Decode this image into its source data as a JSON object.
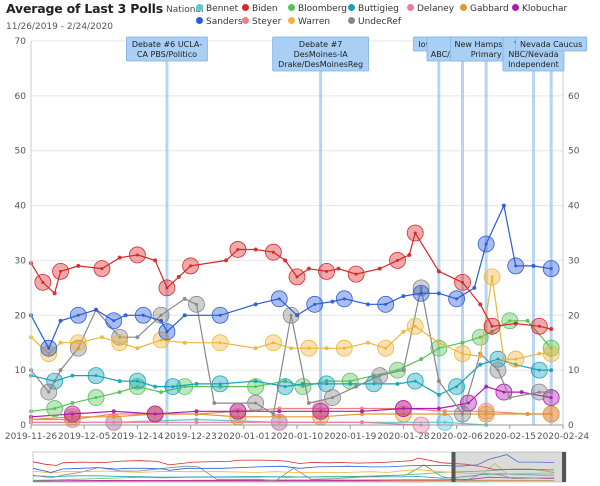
{
  "header": {
    "title": "Average of Last 3 Polls",
    "subtitle": "11/26/2019 - 2/24/2020",
    "scope": "National"
  },
  "legend": [
    {
      "name": "Bennet",
      "color": "#5bc8d6"
    },
    {
      "name": "Biden",
      "color": "#d62728"
    },
    {
      "name": "Bloomberg",
      "color": "#57c25a"
    },
    {
      "name": "Buttigieg",
      "color": "#17a2b8"
    },
    {
      "name": "Delaney",
      "color": "#ef7aa0"
    },
    {
      "name": "Gabbard",
      "color": "#e0982e"
    },
    {
      "name": "Klobuchar",
      "color": "#b01ab0"
    },
    {
      "name": "Sanders",
      "color": "#2a5bd7"
    },
    {
      "name": "Steyer",
      "color": "#f08080"
    },
    {
      "name": "Warren",
      "color": "#f0b43c"
    },
    {
      "name": "UndecRef",
      "color": "#888888"
    }
  ],
  "events": [
    {
      "date": "2019-12-19",
      "label_lines": [
        "Debate #6 UCLA-",
        "CA PBS/Politico"
      ]
    },
    {
      "date": "2020-01-14",
      "label_lines": [
        "Debate #7",
        "DesMoines-IA",
        "Drake/DesMoinesReg"
      ]
    },
    {
      "date": "2020-02-03",
      "label_lines": [
        "Iowa Cauc"
      ]
    },
    {
      "date": "2020-02-07",
      "label_lines": [
        "Mar",
        "ABC/AppleNews"
      ]
    },
    {
      "date": "2020-02-11",
      "label_lines": [
        "New Hampshire",
        "Primary"
      ]
    },
    {
      "date": "2020-02-19",
      "label_lines": [
        "Vegas-NV",
        "NBC/Nevada",
        "Independent"
      ]
    },
    {
      "date": "2020-02-22",
      "label_lines": [
        "Nevada Caucus"
      ]
    }
  ],
  "chart_data": {
    "type": "line",
    "title": "Average of Last 3 Polls",
    "subtitle": "11/26/2019 - 2/24/2020",
    "xlabel": "",
    "ylabel": "",
    "x_range": [
      "2019-11-26",
      "2020-02-24"
    ],
    "ylim": [
      0,
      70
    ],
    "y_ticks": [
      0,
      10,
      20,
      30,
      40,
      50,
      60,
      70
    ],
    "x_ticks": [
      "2019-11-26",
      "2019-12-05",
      "2019-12-14",
      "2019-12-23",
      "2020-01-01",
      "2020-01-10",
      "2020-01-19",
      "2020-01-28",
      "2020-02-06",
      "2020-02-15",
      "2020-02-24"
    ],
    "grid": true,
    "legend_position": "top",
    "series": [
      {
        "name": "Biden",
        "color": "#d62728",
        "points": [
          [
            "2019-11-26",
            29.5
          ],
          [
            "2019-11-28",
            26
          ],
          [
            "2019-11-30",
            24
          ],
          [
            "2019-12-01",
            28
          ],
          [
            "2019-12-04",
            29
          ],
          [
            "2019-12-08",
            28.5
          ],
          [
            "2019-12-11",
            30.5
          ],
          [
            "2019-12-14",
            31
          ],
          [
            "2019-12-17",
            30
          ],
          [
            "2019-12-19",
            25
          ],
          [
            "2019-12-21",
            27
          ],
          [
            "2019-12-23",
            29
          ],
          [
            "2019-12-29",
            30
          ],
          [
            "2019-12-31",
            32
          ],
          [
            "2020-01-03",
            32
          ],
          [
            "2020-01-06",
            31.5
          ],
          [
            "2020-01-08",
            30
          ],
          [
            "2020-01-10",
            27
          ],
          [
            "2020-01-12",
            28.5
          ],
          [
            "2020-01-15",
            28
          ],
          [
            "2020-01-17",
            28.5
          ],
          [
            "2020-01-20",
            27.5
          ],
          [
            "2020-01-24",
            28.5
          ],
          [
            "2020-01-27",
            30
          ],
          [
            "2020-01-29",
            31
          ],
          [
            "2020-01-30",
            35
          ],
          [
            "2020-02-03",
            28
          ],
          [
            "2020-02-07",
            26
          ],
          [
            "2020-02-10",
            22
          ],
          [
            "2020-02-12",
            18
          ],
          [
            "2020-02-16",
            18.5
          ],
          [
            "2020-02-20",
            18
          ],
          [
            "2020-02-22",
            17.5
          ]
        ]
      },
      {
        "name": "Sanders",
        "color": "#2a5bd7",
        "points": [
          [
            "2019-11-26",
            20
          ],
          [
            "2019-11-29",
            14
          ],
          [
            "2019-12-01",
            19
          ],
          [
            "2019-12-04",
            20
          ],
          [
            "2019-12-07",
            21
          ],
          [
            "2019-12-10",
            19
          ],
          [
            "2019-12-12",
            20
          ],
          [
            "2019-12-15",
            20
          ],
          [
            "2019-12-18",
            19
          ],
          [
            "2019-12-19",
            17
          ],
          [
            "2019-12-22",
            20
          ],
          [
            "2019-12-28",
            20
          ],
          [
            "2020-01-03",
            22
          ],
          [
            "2020-01-07",
            23
          ],
          [
            "2020-01-10",
            20
          ],
          [
            "2020-01-13",
            22
          ],
          [
            "2020-01-16",
            22.5
          ],
          [
            "2020-01-18",
            23
          ],
          [
            "2020-01-22",
            22
          ],
          [
            "2020-01-25",
            22
          ],
          [
            "2020-01-28",
            23.5
          ],
          [
            "2020-01-31",
            24
          ],
          [
            "2020-02-03",
            24
          ],
          [
            "2020-02-06",
            23
          ],
          [
            "2020-02-09",
            25
          ],
          [
            "2020-02-11",
            33
          ],
          [
            "2020-02-14",
            40
          ],
          [
            "2020-02-16",
            29
          ],
          [
            "2020-02-19",
            29
          ],
          [
            "2020-02-22",
            28.5
          ]
        ]
      },
      {
        "name": "Warren",
        "color": "#f0b43c",
        "points": [
          [
            "2019-11-26",
            16
          ],
          [
            "2019-11-29",
            13
          ],
          [
            "2019-12-01",
            15
          ],
          [
            "2019-12-04",
            15
          ],
          [
            "2019-12-08",
            16
          ],
          [
            "2019-12-11",
            15
          ],
          [
            "2019-12-14",
            14
          ],
          [
            "2019-12-18",
            15.5
          ],
          [
            "2019-12-22",
            15
          ],
          [
            "2019-12-28",
            15
          ],
          [
            "2020-01-03",
            14
          ],
          [
            "2020-01-06",
            15
          ],
          [
            "2020-01-09",
            14
          ],
          [
            "2020-01-12",
            14
          ],
          [
            "2020-01-15",
            14
          ],
          [
            "2020-01-18",
            14
          ],
          [
            "2020-01-22",
            15
          ],
          [
            "2020-01-25",
            14
          ],
          [
            "2020-01-28",
            17
          ],
          [
            "2020-01-30",
            18
          ],
          [
            "2020-02-03",
            15
          ],
          [
            "2020-02-07",
            13
          ],
          [
            "2020-02-10",
            12.5
          ],
          [
            "2020-02-12",
            27
          ],
          [
            "2020-02-14",
            12
          ],
          [
            "2020-02-16",
            12
          ],
          [
            "2020-02-20",
            13
          ],
          [
            "2020-02-22",
            13
          ]
        ]
      },
      {
        "name": "UndecRef",
        "color": "#888888",
        "points": [
          [
            "2019-11-26",
            10
          ],
          [
            "2019-11-29",
            6
          ],
          [
            "2019-12-01",
            10
          ],
          [
            "2019-12-04",
            14
          ],
          [
            "2019-12-07",
            21
          ],
          [
            "2019-12-11",
            16
          ],
          [
            "2019-12-14",
            16
          ],
          [
            "2019-12-18",
            20
          ],
          [
            "2019-12-22",
            23
          ],
          [
            "2019-12-24",
            22
          ],
          [
            "2019-12-27",
            4
          ],
          [
            "2020-01-03",
            4
          ],
          [
            "2020-01-06",
            2
          ],
          [
            "2020-01-09",
            20
          ],
          [
            "2020-01-12",
            4
          ],
          [
            "2020-01-16",
            5
          ],
          [
            "2020-01-20",
            7
          ],
          [
            "2020-01-24",
            9
          ],
          [
            "2020-01-28",
            10
          ],
          [
            "2020-01-31",
            25
          ],
          [
            "2020-02-03",
            8
          ],
          [
            "2020-02-07",
            2
          ],
          [
            "2020-02-10",
            13
          ],
          [
            "2020-02-13",
            10
          ],
          [
            "2020-02-15",
            5
          ],
          [
            "2020-02-20",
            6
          ],
          [
            "2020-02-22",
            6
          ]
        ]
      },
      {
        "name": "Buttigieg",
        "color": "#17a2b8",
        "points": [
          [
            "2019-11-26",
            9
          ],
          [
            "2019-11-30",
            8
          ],
          [
            "2019-12-03",
            9
          ],
          [
            "2019-12-07",
            9
          ],
          [
            "2019-12-11",
            8
          ],
          [
            "2019-12-14",
            8
          ],
          [
            "2019-12-17",
            7
          ],
          [
            "2019-12-20",
            7
          ],
          [
            "2019-12-24",
            7.5
          ],
          [
            "2019-12-28",
            7.5
          ],
          [
            "2020-01-03",
            8
          ],
          [
            "2020-01-08",
            7
          ],
          [
            "2020-01-11",
            7.5
          ],
          [
            "2020-01-15",
            7.5
          ],
          [
            "2020-01-19",
            7.5
          ],
          [
            "2020-01-23",
            7.5
          ],
          [
            "2020-01-27",
            7.5
          ],
          [
            "2020-01-30",
            8
          ],
          [
            "2020-02-03",
            5.5
          ],
          [
            "2020-02-06",
            7
          ],
          [
            "2020-02-10",
            11
          ],
          [
            "2020-02-13",
            12
          ],
          [
            "2020-02-16",
            11
          ],
          [
            "2020-02-20",
            10
          ],
          [
            "2020-02-22",
            10
          ]
        ]
      },
      {
        "name": "Bloomberg",
        "color": "#57c25a",
        "points": [
          [
            "2019-11-26",
            2.5
          ],
          [
            "2019-11-30",
            3
          ],
          [
            "2019-12-03",
            4
          ],
          [
            "2019-12-07",
            5
          ],
          [
            "2019-12-11",
            6
          ],
          [
            "2019-12-14",
            7
          ],
          [
            "2019-12-18",
            6
          ],
          [
            "2019-12-22",
            7
          ],
          [
            "2019-12-28",
            7
          ],
          [
            "2020-01-03",
            7
          ],
          [
            "2020-01-08",
            8
          ],
          [
            "2020-01-11",
            7
          ],
          [
            "2020-01-15",
            8
          ],
          [
            "2020-01-19",
            8
          ],
          [
            "2020-01-23",
            9
          ],
          [
            "2020-01-27",
            10
          ],
          [
            "2020-01-31",
            12
          ],
          [
            "2020-02-03",
            14
          ],
          [
            "2020-02-07",
            15
          ],
          [
            "2020-02-10",
            16
          ],
          [
            "2020-02-12",
            17
          ],
          [
            "2020-02-15",
            19
          ],
          [
            "2020-02-18",
            19
          ],
          [
            "2020-02-22",
            14
          ]
        ]
      },
      {
        "name": "Klobuchar",
        "color": "#b01ab0",
        "points": [
          [
            "2019-11-26",
            1.5
          ],
          [
            "2019-12-03",
            2
          ],
          [
            "2019-12-10",
            2.5
          ],
          [
            "2019-12-17",
            2
          ],
          [
            "2019-12-24",
            2.5
          ],
          [
            "2019-12-31",
            2.5
          ],
          [
            "2020-01-07",
            2.5
          ],
          [
            "2020-01-14",
            2.5
          ],
          [
            "2020-01-21",
            2.5
          ],
          [
            "2020-01-28",
            3
          ],
          [
            "2020-02-03",
            3
          ],
          [
            "2020-02-08",
            4
          ],
          [
            "2020-02-11",
            7
          ],
          [
            "2020-02-14",
            6
          ],
          [
            "2020-02-17",
            6
          ],
          [
            "2020-02-22",
            5
          ]
        ]
      },
      {
        "name": "Gabbard",
        "color": "#e0982e",
        "points": [
          [
            "2019-11-26",
            1
          ],
          [
            "2019-12-03",
            1.5
          ],
          [
            "2019-12-10",
            1.5
          ],
          [
            "2019-12-17",
            2
          ],
          [
            "2019-12-24",
            2
          ],
          [
            "2019-12-31",
            1.5
          ],
          [
            "2020-01-07",
            1.5
          ],
          [
            "2020-01-14",
            1.5
          ],
          [
            "2020-01-21",
            2
          ],
          [
            "2020-01-28",
            2
          ],
          [
            "2020-02-04",
            2
          ],
          [
            "2020-02-11",
            2
          ],
          [
            "2020-02-18",
            2
          ],
          [
            "2020-02-22",
            2
          ]
        ]
      },
      {
        "name": "Steyer",
        "color": "#f08080",
        "points": [
          [
            "2019-11-26",
            1
          ],
          [
            "2019-12-03",
            1
          ],
          [
            "2019-12-10",
            2
          ],
          [
            "2019-12-17",
            2
          ],
          [
            "2019-12-24",
            2
          ],
          [
            "2019-12-31",
            2.5
          ],
          [
            "2020-01-07",
            3
          ],
          [
            "2020-01-14",
            3
          ],
          [
            "2020-01-21",
            3
          ],
          [
            "2020-01-28",
            3
          ],
          [
            "2020-02-04",
            2.5
          ],
          [
            "2020-02-11",
            2.5
          ],
          [
            "2020-02-18",
            2
          ],
          [
            "2020-02-22",
            2
          ]
        ]
      },
      {
        "name": "Bennet",
        "color": "#5bc8d6",
        "points": [
          [
            "2019-11-26",
            0.5
          ],
          [
            "2019-12-10",
            0.5
          ],
          [
            "2019-12-24",
            1
          ],
          [
            "2020-01-07",
            0.5
          ],
          [
            "2020-01-21",
            0.5
          ],
          [
            "2020-02-04",
            0.5
          ],
          [
            "2020-02-11",
            0
          ]
        ]
      },
      {
        "name": "Delaney",
        "color": "#ef7aa0",
        "points": [
          [
            "2019-11-26",
            0.5
          ],
          [
            "2019-12-10",
            0.5
          ],
          [
            "2019-12-24",
            0.5
          ],
          [
            "2020-01-07",
            0.5
          ],
          [
            "2020-01-21",
            0.5
          ],
          [
            "2020-01-31",
            0
          ]
        ]
      }
    ]
  }
}
